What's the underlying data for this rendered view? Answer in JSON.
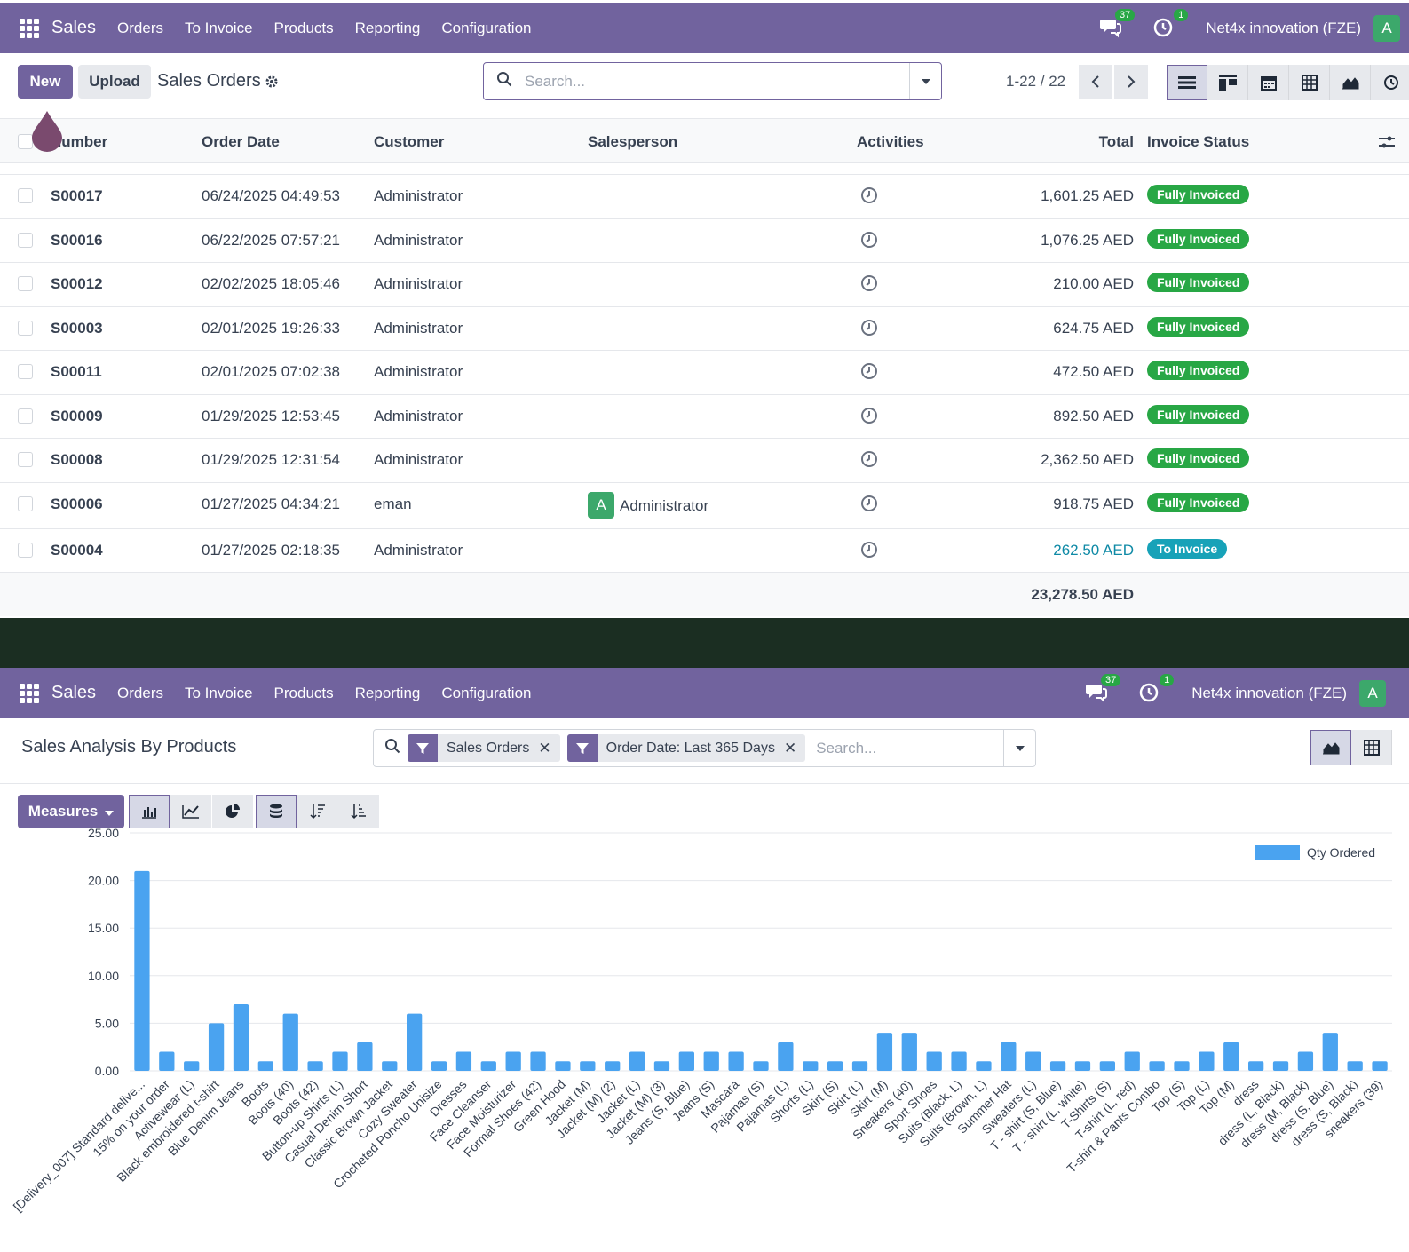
{
  "nav": {
    "brand": "Sales",
    "menu": [
      "Orders",
      "To Invoice",
      "Products",
      "Reporting",
      "Configuration"
    ],
    "messages_count": "37",
    "activities_count": "1",
    "company": "Net4x innovation (FZE)",
    "avatar_letter": "A"
  },
  "list_view": {
    "new_label": "New",
    "upload_label": "Upload",
    "title": "Sales Orders",
    "search_placeholder": "Search...",
    "pager": "1-22 / 22",
    "columns": [
      "Number",
      "Order Date",
      "Customer",
      "Salesperson",
      "Activities",
      "Total",
      "Invoice Status"
    ],
    "rows": [
      {
        "number": "S00017",
        "date": "06/24/2025 04:49:53",
        "customer": "Administrator",
        "salesperson": "",
        "total": "1,601.25 AED",
        "status": "Fully Invoiced"
      },
      {
        "number": "S00016",
        "date": "06/22/2025 07:57:21",
        "customer": "Administrator",
        "salesperson": "",
        "total": "1,076.25 AED",
        "status": "Fully Invoiced"
      },
      {
        "number": "S00012",
        "date": "02/02/2025 18:05:46",
        "customer": "Administrator",
        "salesperson": "",
        "total": "210.00 AED",
        "status": "Fully Invoiced"
      },
      {
        "number": "S00003",
        "date": "02/01/2025 19:26:33",
        "customer": "Administrator",
        "salesperson": "",
        "total": "624.75 AED",
        "status": "Fully Invoiced"
      },
      {
        "number": "S00011",
        "date": "02/01/2025 07:02:38",
        "customer": "Administrator",
        "salesperson": "",
        "total": "472.50 AED",
        "status": "Fully Invoiced"
      },
      {
        "number": "S00009",
        "date": "01/29/2025 12:53:45",
        "customer": "Administrator",
        "salesperson": "",
        "total": "892.50 AED",
        "status": "Fully Invoiced"
      },
      {
        "number": "S00008",
        "date": "01/29/2025 12:31:54",
        "customer": "Administrator",
        "salesperson": "",
        "total": "2,362.50 AED",
        "status": "Fully Invoiced"
      },
      {
        "number": "S00006",
        "date": "01/27/2025 04:34:21",
        "customer": "eman",
        "salesperson": "Administrator",
        "salesperson_avatar": "A",
        "total": "918.75 AED",
        "status": "Fully Invoiced"
      },
      {
        "number": "S00004",
        "date": "01/27/2025 02:18:35",
        "customer": "Administrator",
        "salesperson": "",
        "total": "262.50 AED",
        "status": "To Invoice"
      }
    ],
    "grand_total": "23,278.50 AED"
  },
  "analysis_view": {
    "title": "Sales Analysis By Products",
    "facets": [
      "Sales Orders",
      "Order Date: Last 365 Days"
    ],
    "search_placeholder": "Search...",
    "measures_label": "Measures"
  },
  "colors": {
    "brand": "#71639e",
    "bar": "#4aa3f0",
    "status_green": "#28a745",
    "status_teal": "#17a2b8"
  },
  "chart_data": {
    "type": "bar",
    "legend": "Qty Ordered",
    "legend_position": "top-right",
    "ylim": [
      0,
      25
    ],
    "yticks": [
      "0.00",
      "5.00",
      "10.00",
      "15.00",
      "20.00",
      "25.00"
    ],
    "grid": true,
    "categories": [
      "[Delivery_007] Standard delive...",
      "15% on your order",
      "Activewear (L)",
      "Black embroidered t-shirt",
      "Blue Denim Jeans",
      "Boots",
      "Boots (40)",
      "Boots (42)",
      "Button-up Shirts (L)",
      "Casual Denim Short",
      "Classic Brown Jacket",
      "Cozy Sweater",
      "Crocheted Poncho Unisize",
      "Dresses",
      "Face Cleanser",
      "Face Moisturizer",
      "Formal Shoes (42)",
      "Green Hood",
      "Jacket (M)",
      "Jacket (M) (2)",
      "Jacket (L)",
      "Jacket (M) (3)",
      "Jeans (S, Blue)",
      "Jeans (S)",
      "Mascara",
      "Pajamas (S)",
      "Pajamas (L)",
      "Shorts (L)",
      "Skirt (S)",
      "Skirt (L)",
      "Skirt (M)",
      "Sneakers (40)",
      "Sport Shoes",
      "Suits (Black, L)",
      "Suits (Brown, L)",
      "Summer Hat",
      "Sweaters (L)",
      "T - shirt (S, Blue)",
      "T - shirt (L, white)",
      "T-Shirts (S)",
      "T-shirt (L, red)",
      "T-shirt & Pants Combo",
      "Top (S)",
      "Top (L)",
      "Top (M)",
      "dress",
      "dress (L, Black)",
      "dress (M, Black)",
      "dress (S, Blue)",
      "dress (S, Black)",
      "sneakers (39)"
    ],
    "values": [
      21,
      2,
      1,
      5,
      7,
      1,
      6,
      1,
      2,
      3,
      1,
      6,
      1,
      2,
      1,
      2,
      2,
      1,
      1,
      1,
      2,
      1,
      2,
      2,
      2,
      1,
      3,
      1,
      1,
      1,
      4,
      4,
      2,
      2,
      1,
      3,
      2,
      1,
      1,
      1,
      2,
      1,
      1,
      2,
      3,
      1,
      1,
      2,
      4,
      1,
      1
    ]
  }
}
